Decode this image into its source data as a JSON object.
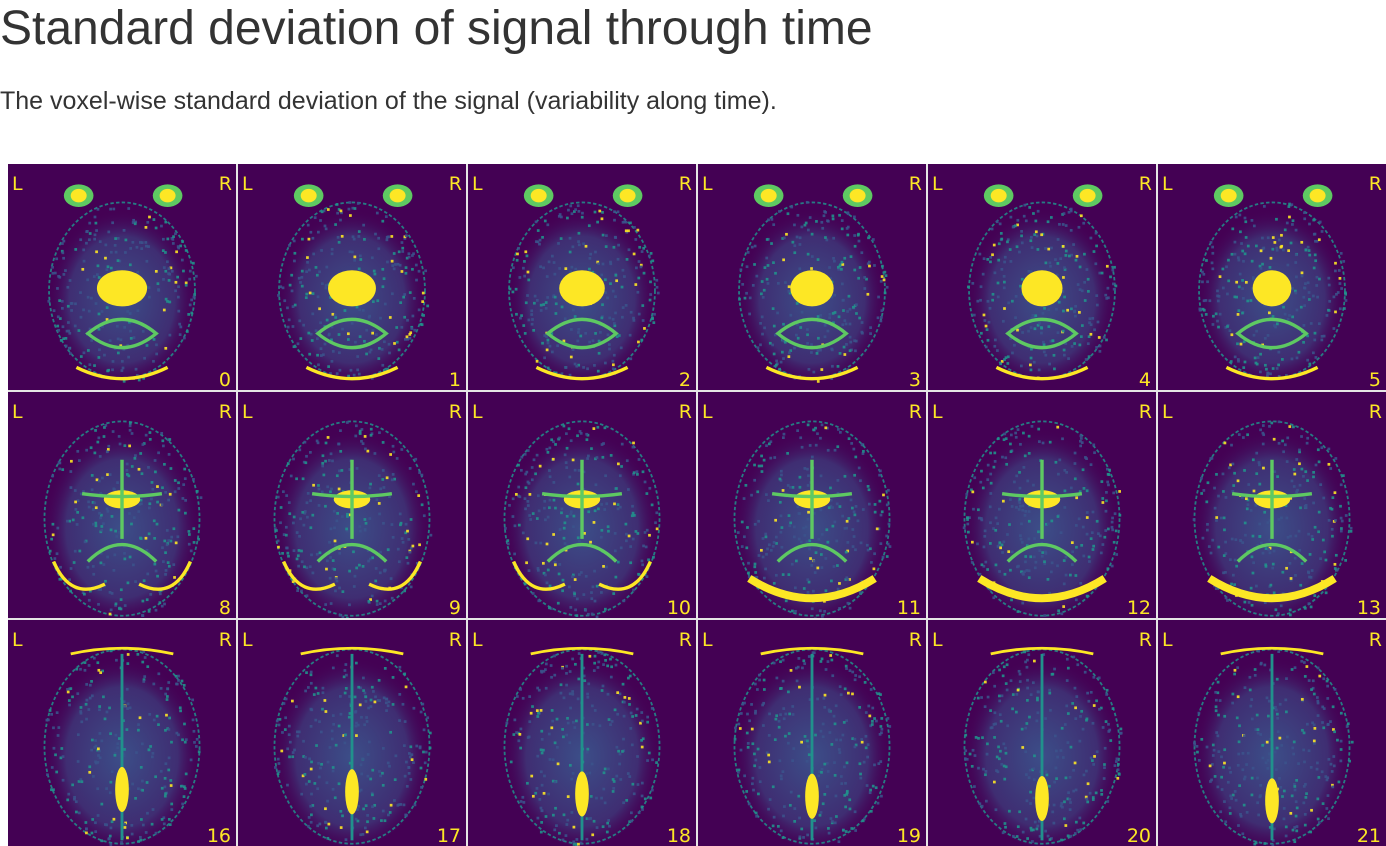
{
  "section": {
    "title": "Standard deviation of signal through time",
    "description": "The voxel-wise standard deviation of the signal (variability along time)."
  },
  "mosaic": {
    "orientation_left_label": "L",
    "orientation_right_label": "R",
    "colors": {
      "background": "#440154",
      "low": "#3b528b",
      "mid": "#21918c",
      "high": "#5ec962",
      "peak": "#fde725",
      "label": "#fde725"
    },
    "colormap": "viridis",
    "rows": [
      {
        "slices": [
          {
            "index": "0"
          },
          {
            "index": "1"
          },
          {
            "index": "2"
          },
          {
            "index": "3"
          },
          {
            "index": "4"
          },
          {
            "index": "5"
          }
        ]
      },
      {
        "slices": [
          {
            "index": "8"
          },
          {
            "index": "9"
          },
          {
            "index": "10"
          },
          {
            "index": "11"
          },
          {
            "index": "12"
          },
          {
            "index": "13"
          }
        ]
      },
      {
        "slices": [
          {
            "index": "16"
          },
          {
            "index": "17"
          },
          {
            "index": "18"
          },
          {
            "index": "19"
          },
          {
            "index": "20"
          },
          {
            "index": "21"
          }
        ]
      }
    ]
  }
}
